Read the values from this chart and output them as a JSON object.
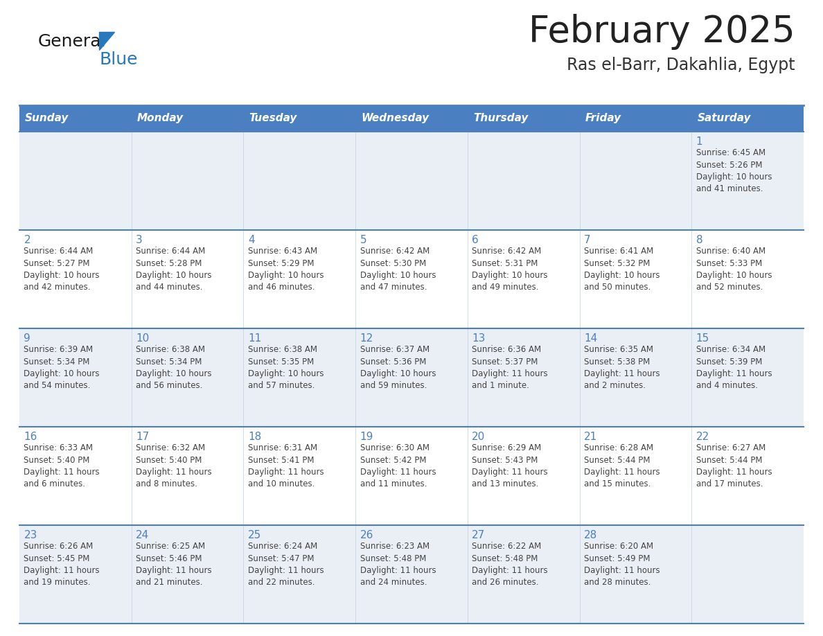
{
  "title": "February 2025",
  "subtitle": "Ras el-Barr, Dakahlia, Egypt",
  "days_of_week": [
    "Sunday",
    "Monday",
    "Tuesday",
    "Wednesday",
    "Thursday",
    "Friday",
    "Saturday"
  ],
  "header_bg": "#4A7FC1",
  "header_text": "#FFFFFF",
  "row0_bg": "#E8EEF5",
  "row1_bg": "#FFFFFF",
  "row2_bg": "#E8EEF5",
  "row3_bg": "#FFFFFF",
  "row4_bg": "#E8EEF5",
  "line_color": "#4A7FC1",
  "title_color": "#222222",
  "subtitle_color": "#333333",
  "day_number_color": "#4A7FC1",
  "cell_text_color": "#444444",
  "logo_general_color": "#1a1a1a",
  "logo_blue_color": "#2878BE",
  "calendar": [
    [
      null,
      null,
      null,
      null,
      null,
      null,
      {
        "day": 1,
        "sunrise": "6:45 AM",
        "sunset": "5:26 PM",
        "daylight": "10 hours\nand 41 minutes."
      }
    ],
    [
      {
        "day": 2,
        "sunrise": "6:44 AM",
        "sunset": "5:27 PM",
        "daylight": "10 hours\nand 42 minutes."
      },
      {
        "day": 3,
        "sunrise": "6:44 AM",
        "sunset": "5:28 PM",
        "daylight": "10 hours\nand 44 minutes."
      },
      {
        "day": 4,
        "sunrise": "6:43 AM",
        "sunset": "5:29 PM",
        "daylight": "10 hours\nand 46 minutes."
      },
      {
        "day": 5,
        "sunrise": "6:42 AM",
        "sunset": "5:30 PM",
        "daylight": "10 hours\nand 47 minutes."
      },
      {
        "day": 6,
        "sunrise": "6:42 AM",
        "sunset": "5:31 PM",
        "daylight": "10 hours\nand 49 minutes."
      },
      {
        "day": 7,
        "sunrise": "6:41 AM",
        "sunset": "5:32 PM",
        "daylight": "10 hours\nand 50 minutes."
      },
      {
        "day": 8,
        "sunrise": "6:40 AM",
        "sunset": "5:33 PM",
        "daylight": "10 hours\nand 52 minutes."
      }
    ],
    [
      {
        "day": 9,
        "sunrise": "6:39 AM",
        "sunset": "5:34 PM",
        "daylight": "10 hours\nand 54 minutes."
      },
      {
        "day": 10,
        "sunrise": "6:38 AM",
        "sunset": "5:34 PM",
        "daylight": "10 hours\nand 56 minutes."
      },
      {
        "day": 11,
        "sunrise": "6:38 AM",
        "sunset": "5:35 PM",
        "daylight": "10 hours\nand 57 minutes."
      },
      {
        "day": 12,
        "sunrise": "6:37 AM",
        "sunset": "5:36 PM",
        "daylight": "10 hours\nand 59 minutes."
      },
      {
        "day": 13,
        "sunrise": "6:36 AM",
        "sunset": "5:37 PM",
        "daylight": "11 hours\nand 1 minute."
      },
      {
        "day": 14,
        "sunrise": "6:35 AM",
        "sunset": "5:38 PM",
        "daylight": "11 hours\nand 2 minutes."
      },
      {
        "day": 15,
        "sunrise": "6:34 AM",
        "sunset": "5:39 PM",
        "daylight": "11 hours\nand 4 minutes."
      }
    ],
    [
      {
        "day": 16,
        "sunrise": "6:33 AM",
        "sunset": "5:40 PM",
        "daylight": "11 hours\nand 6 minutes."
      },
      {
        "day": 17,
        "sunrise": "6:32 AM",
        "sunset": "5:40 PM",
        "daylight": "11 hours\nand 8 minutes."
      },
      {
        "day": 18,
        "sunrise": "6:31 AM",
        "sunset": "5:41 PM",
        "daylight": "11 hours\nand 10 minutes."
      },
      {
        "day": 19,
        "sunrise": "6:30 AM",
        "sunset": "5:42 PM",
        "daylight": "11 hours\nand 11 minutes."
      },
      {
        "day": 20,
        "sunrise": "6:29 AM",
        "sunset": "5:43 PM",
        "daylight": "11 hours\nand 13 minutes."
      },
      {
        "day": 21,
        "sunrise": "6:28 AM",
        "sunset": "5:44 PM",
        "daylight": "11 hours\nand 15 minutes."
      },
      {
        "day": 22,
        "sunrise": "6:27 AM",
        "sunset": "5:44 PM",
        "daylight": "11 hours\nand 17 minutes."
      }
    ],
    [
      {
        "day": 23,
        "sunrise": "6:26 AM",
        "sunset": "5:45 PM",
        "daylight": "11 hours\nand 19 minutes."
      },
      {
        "day": 24,
        "sunrise": "6:25 AM",
        "sunset": "5:46 PM",
        "daylight": "11 hours\nand 21 minutes."
      },
      {
        "day": 25,
        "sunrise": "6:24 AM",
        "sunset": "5:47 PM",
        "daylight": "11 hours\nand 22 minutes."
      },
      {
        "day": 26,
        "sunrise": "6:23 AM",
        "sunset": "5:48 PM",
        "daylight": "11 hours\nand 24 minutes."
      },
      {
        "day": 27,
        "sunrise": "6:22 AM",
        "sunset": "5:48 PM",
        "daylight": "11 hours\nand 26 minutes."
      },
      {
        "day": 28,
        "sunrise": "6:20 AM",
        "sunset": "5:49 PM",
        "daylight": "11 hours\nand 28 minutes."
      },
      null
    ]
  ],
  "row_bg_colors": [
    "#EAEFF6",
    "#FFFFFF",
    "#EAEFF6",
    "#FFFFFF",
    "#EAEFF6"
  ]
}
